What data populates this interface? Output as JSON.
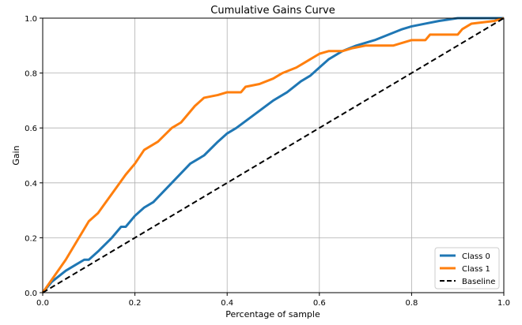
{
  "chart_data": {
    "type": "line",
    "title": "Cumulative Gains Curve",
    "xlabel": "Percentage of sample",
    "ylabel": "Gain",
    "xlim": [
      0,
      1
    ],
    "ylim": [
      0,
      1
    ],
    "xticks": [
      "0.0",
      "0.2",
      "0.4",
      "0.6",
      "0.8",
      "1.0"
    ],
    "yticks": [
      "0.0",
      "0.2",
      "0.4",
      "0.6",
      "0.8",
      "1.0"
    ],
    "grid": true,
    "legend_position": "bottom-right",
    "series": [
      {
        "name": "Class 0",
        "color": "#1f77b4",
        "style": "solid",
        "x": [
          0,
          0.02,
          0.05,
          0.07,
          0.09,
          0.1,
          0.12,
          0.15,
          0.17,
          0.18,
          0.2,
          0.22,
          0.24,
          0.28,
          0.32,
          0.35,
          0.38,
          0.4,
          0.42,
          0.46,
          0.5,
          0.53,
          0.56,
          0.58,
          0.6,
          0.62,
          0.65,
          0.68,
          0.72,
          0.75,
          0.78,
          0.8,
          0.83,
          0.86,
          0.9,
          1.0
        ],
        "y": [
          0,
          0.04,
          0.08,
          0.1,
          0.12,
          0.12,
          0.15,
          0.2,
          0.24,
          0.24,
          0.28,
          0.31,
          0.33,
          0.4,
          0.47,
          0.5,
          0.55,
          0.58,
          0.6,
          0.65,
          0.7,
          0.73,
          0.77,
          0.79,
          0.82,
          0.85,
          0.88,
          0.9,
          0.92,
          0.94,
          0.96,
          0.97,
          0.98,
          0.99,
          1.0,
          1.0
        ]
      },
      {
        "name": "Class 1",
        "color": "#ff7f0e",
        "style": "solid",
        "x": [
          0,
          0.05,
          0.1,
          0.12,
          0.15,
          0.18,
          0.2,
          0.22,
          0.25,
          0.28,
          0.3,
          0.33,
          0.35,
          0.38,
          0.4,
          0.43,
          0.44,
          0.47,
          0.5,
          0.52,
          0.55,
          0.58,
          0.6,
          0.62,
          0.65,
          0.67,
          0.7,
          0.76,
          0.78,
          0.8,
          0.83,
          0.84,
          0.9,
          0.91,
          0.93,
          0.98,
          1.0
        ],
        "y": [
          0,
          0.12,
          0.26,
          0.29,
          0.36,
          0.43,
          0.47,
          0.52,
          0.55,
          0.6,
          0.62,
          0.68,
          0.71,
          0.72,
          0.73,
          0.73,
          0.75,
          0.76,
          0.78,
          0.8,
          0.82,
          0.85,
          0.87,
          0.88,
          0.88,
          0.89,
          0.9,
          0.9,
          0.91,
          0.92,
          0.92,
          0.94,
          0.94,
          0.96,
          0.98,
          0.99,
          1.0
        ]
      },
      {
        "name": "Baseline",
        "color": "#000000",
        "style": "dashed",
        "x": [
          0,
          1
        ],
        "y": [
          0,
          1
        ]
      }
    ]
  }
}
